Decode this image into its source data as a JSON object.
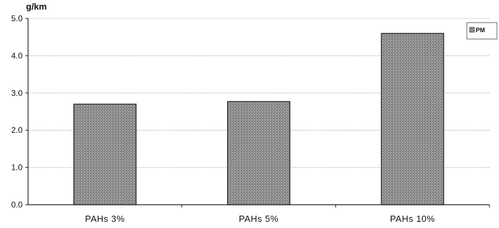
{
  "chart_data": {
    "type": "bar",
    "title": "",
    "ylabel": "g/km",
    "xlabel": "",
    "categories": [
      "PAHs 3%",
      "PAHs 5%",
      "PAHs 10%"
    ],
    "series": [
      {
        "name": "PM",
        "values": [
          2.7,
          2.77,
          4.6
        ]
      }
    ],
    "ylim": [
      0,
      5.0
    ],
    "yticks": [
      "0.0",
      "1.0",
      "2.0",
      "3.0",
      "4.0",
      "5.0"
    ],
    "grid": true,
    "legend": "right",
    "colors": {
      "bar": "#8f8f8f",
      "bar_edge": "#1a1a1a",
      "grid": "#9a9a9a",
      "axis": "#222222"
    }
  }
}
